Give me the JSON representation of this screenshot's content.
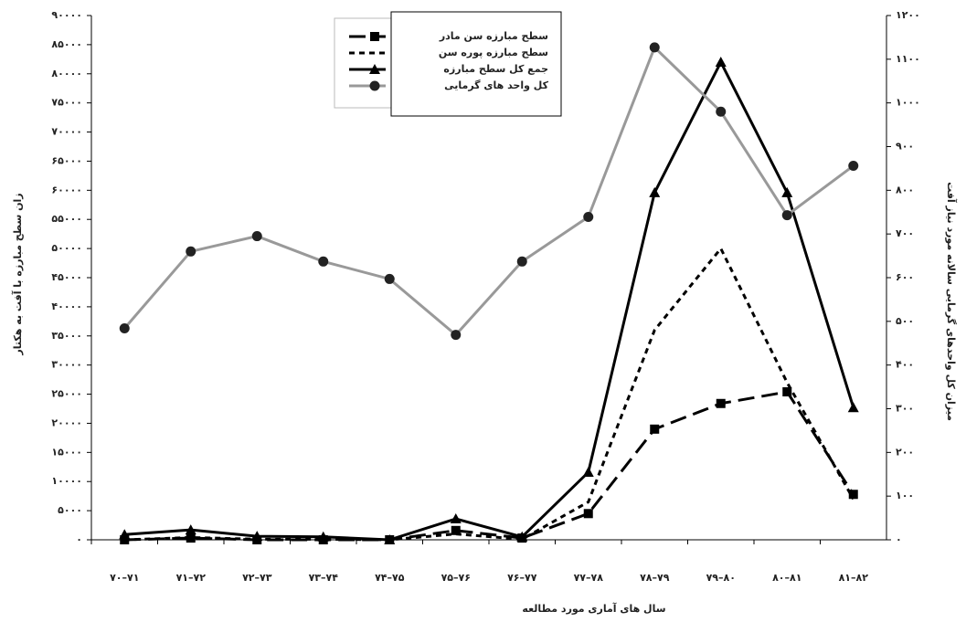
{
  "chart_data": {
    "type": "line",
    "x_label": "سال های آماری مورد مطالعه",
    "y_label": "زان سطح مبارزه با آفت به هکتار",
    "y2_label": "میزان کل واحدهای گرمایی سالانه مورد نیاز آفت",
    "categories": [
      "۷۰–۷۱",
      "۷۱–۷۲",
      "۷۲–۷۳",
      "۷۳–۷۴",
      "۷۴–۷۵",
      "۷۵–۷۶",
      "۷۶–۷۷",
      "۷۷–۷۸",
      "۷۸–۷۹",
      "۷۹–۸۰",
      "۸۰–۸۱",
      "۸۱–۸۲"
    ],
    "series": [
      {
        "name": "سطح مبارزه سن مادر",
        "color": "#000000",
        "line_style": "long-dash",
        "marker": "square",
        "axis": "y",
        "values": [
          0,
          300,
          0,
          0,
          0,
          1600,
          300,
          4500,
          19000,
          23400,
          25400,
          7800
        ]
      },
      {
        "name": "سطح مبارزه پوره سن",
        "color": "#000000",
        "line_style": "dashed",
        "marker": "none",
        "axis": "y",
        "values": [
          0,
          400,
          100,
          100,
          0,
          1000,
          100,
          6500,
          36000,
          50000,
          27000,
          7000
        ]
      },
      {
        "name": "جمع کل سطح مبارزه",
        "color": "#000000",
        "line_style": "solid",
        "marker": "triangle",
        "axis": "y",
        "values": [
          900,
          1700,
          600,
          500,
          0,
          3600,
          500,
          11600,
          59600,
          82000,
          59600,
          22700
        ]
      },
      {
        "name": "کل واحد های گرمایی",
        "color": "#999999",
        "line_style": "solid",
        "marker": "circle",
        "axis": "y2",
        "values": [
          484,
          660,
          695,
          637,
          597,
          469,
          637,
          739,
          1127,
          980,
          743,
          856
        ]
      }
    ],
    "ylim": [
      0,
      90000
    ],
    "yticks": [
      {
        "value": 0,
        "label": "۰"
      },
      {
        "value": 5000,
        "label": "۵۰۰۰"
      },
      {
        "value": 10000,
        "label": "۱۰۰۰۰"
      },
      {
        "value": 15000,
        "label": "۱۵۰۰۰"
      },
      {
        "value": 20000,
        "label": "۲۰۰۰۰"
      },
      {
        "value": 25000,
        "label": "۲۵۰۰۰"
      },
      {
        "value": 30000,
        "label": "۳۰۰۰۰"
      },
      {
        "value": 35000,
        "label": "۳۵۰۰۰"
      },
      {
        "value": 40000,
        "label": "۴۰۰۰۰"
      },
      {
        "value": 45000,
        "label": "۴۵۰۰۰"
      },
      {
        "value": 50000,
        "label": "۵۰۰۰۰"
      },
      {
        "value": 55000,
        "label": "۵۵۰۰۰"
      },
      {
        "value": 60000,
        "label": "۶۰۰۰۰"
      },
      {
        "value": 65000,
        "label": "۶۵۰۰۰"
      },
      {
        "value": 70000,
        "label": "۷۰۰۰۰"
      },
      {
        "value": 75000,
        "label": "۷۵۰۰۰"
      },
      {
        "value": 80000,
        "label": "۸۰۰۰۰"
      },
      {
        "value": 85000,
        "label": "۸۵۰۰۰"
      },
      {
        "value": 90000,
        "label": "۹۰۰۰۰"
      }
    ],
    "y2lim": [
      0,
      1200
    ],
    "y2ticks": [
      {
        "value": 0,
        "label": "۰"
      },
      {
        "value": 100,
        "label": "۱۰۰"
      },
      {
        "value": 200,
        "label": "۲۰۰"
      },
      {
        "value": 300,
        "label": "۳۰۰"
      },
      {
        "value": 400,
        "label": "۴۰۰"
      },
      {
        "value": 500,
        "label": "۵۰۰"
      },
      {
        "value": 600,
        "label": "۶۰۰"
      },
      {
        "value": 700,
        "label": "۷۰۰"
      },
      {
        "value": 800,
        "label": "۸۰۰"
      },
      {
        "value": 900,
        "label": "۹۰۰"
      },
      {
        "value": 1000,
        "label": "۱۰۰۰"
      },
      {
        "value": 1100,
        "label": "۱۱۰۰"
      },
      {
        "value": 1200,
        "label": "۱۲۰۰"
      }
    ],
    "grid": false,
    "legend_position": "top"
  }
}
